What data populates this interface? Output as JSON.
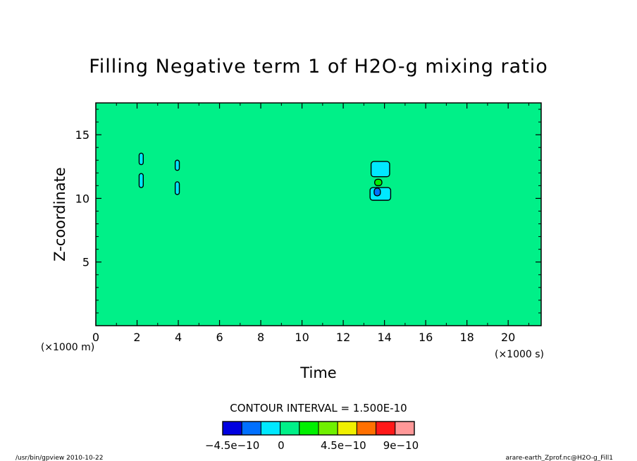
{
  "chart_data": {
    "type": "heatmap",
    "title": "Filling Negative term 1 of H2O-g mixing ratio",
    "xlabel": "Time",
    "ylabel": "Z-coordinate",
    "x_unit": "(×1000 s)",
    "y_unit": "(×1000 m)",
    "xlim": [
      0,
      21.6
    ],
    "ylim": [
      0,
      17.5
    ],
    "x_ticks": [
      0,
      2,
      4,
      6,
      8,
      10,
      12,
      14,
      16,
      18,
      20
    ],
    "y_ticks": [
      5,
      10,
      15
    ],
    "background_level": "0 to 1.5e-10",
    "contour_interval_label": "CONTOUR INTERVAL = 1.500E-10",
    "colorbar": {
      "colors": [
        "#0000e0",
        "#0070ff",
        "#00e8ff",
        "#00f088",
        "#00f000",
        "#70f000",
        "#f0f000",
        "#ff7000",
        "#ff1818",
        "#ff9898"
      ],
      "tick_labels": [
        "−4.5e−10",
        "0",
        "4.5e−10",
        "9e−10"
      ]
    },
    "features": [
      {
        "name": "cell-a-upper",
        "x": 2.2,
        "y": 13.1,
        "w": 0.2,
        "h": 0.9,
        "fill": "#00e8ff"
      },
      {
        "name": "cell-a-lower",
        "x": 2.2,
        "y": 11.4,
        "w": 0.2,
        "h": 1.1,
        "fill": "#00e8ff"
      },
      {
        "name": "cell-b-upper",
        "x": 3.95,
        "y": 12.6,
        "w": 0.2,
        "h": 0.8,
        "fill": "#00e8ff"
      },
      {
        "name": "cell-b-lower",
        "x": 3.95,
        "y": 10.8,
        "w": 0.2,
        "h": 1.0,
        "fill": "#00e8ff"
      },
      {
        "name": "cell-c-upper",
        "x": 13.8,
        "y": 12.3,
        "w": 0.9,
        "h": 1.2,
        "fill": "#00e8ff"
      },
      {
        "name": "cell-c-lower",
        "x": 13.8,
        "y": 10.35,
        "w": 1.0,
        "h": 1.0,
        "fill": "#00e8ff"
      },
      {
        "name": "cell-c-core",
        "x": 13.65,
        "y": 10.5,
        "w": 0.3,
        "h": 0.6,
        "fill": "#0070ff"
      },
      {
        "name": "cell-c-mid",
        "x": 13.7,
        "y": 11.25,
        "w": 0.35,
        "h": 0.5,
        "fill": "#00f000"
      }
    ]
  },
  "footer": {
    "left": "/usr/bin/gpview  2010-10-22",
    "right": "arare-earth_Zprof.nc@H2O-g_Fill1"
  }
}
